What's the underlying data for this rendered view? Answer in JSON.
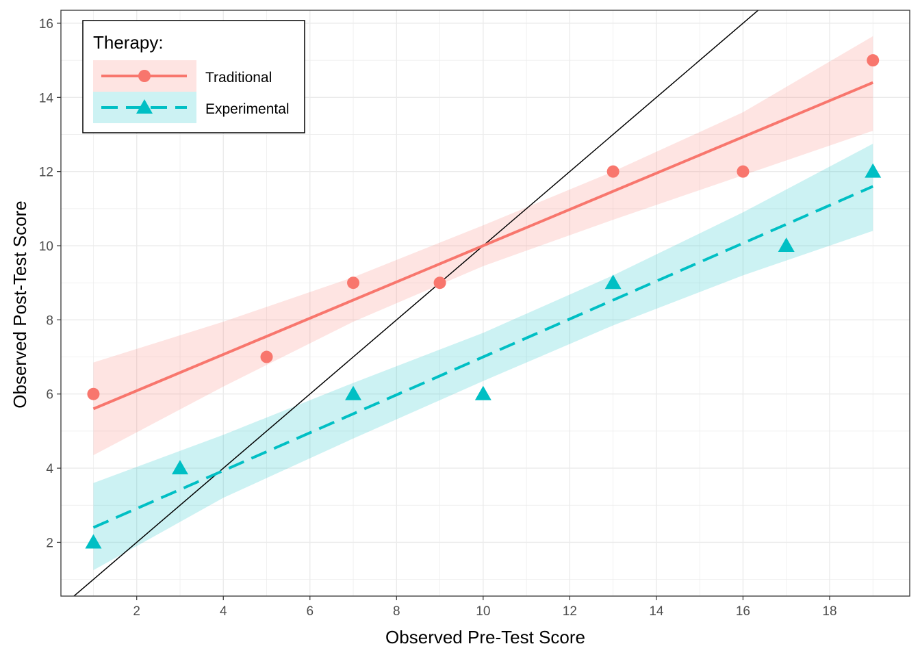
{
  "chart_data": {
    "type": "scatter",
    "xlabel": "Observed Pre-Test Score",
    "ylabel": "Observed Post-Test Score",
    "xlim": [
      0.25,
      19.85
    ],
    "ylim": [
      0.55,
      16.35
    ],
    "x_ticks": [
      2,
      4,
      6,
      8,
      10,
      12,
      14,
      16,
      18
    ],
    "y_ticks": [
      2,
      4,
      6,
      8,
      10,
      12,
      14,
      16
    ],
    "x_tick_labels": [
      "2",
      "4",
      "6",
      "8",
      "10",
      "12",
      "14",
      "16",
      "18"
    ],
    "y_tick_labels": [
      "2",
      "4",
      "6",
      "8",
      "10",
      "12",
      "14",
      "16"
    ],
    "grid": true,
    "reference_line": {
      "slope": 1,
      "intercept": 0,
      "color": "#000000"
    },
    "legend": {
      "title": "Therapy:",
      "position": "top-left"
    },
    "series": [
      {
        "name": "Traditional",
        "color": "#F8766D",
        "marker": "circle",
        "line_style": "solid",
        "points": [
          [
            1,
            6
          ],
          [
            5,
            7
          ],
          [
            7,
            9
          ],
          [
            9,
            9
          ],
          [
            13,
            12
          ],
          [
            16,
            12
          ],
          [
            19,
            15
          ]
        ],
        "fit": {
          "x0": 1,
          "x1": 19,
          "y0": 5.6,
          "y1": 14.4
        },
        "band": {
          "x": [
            1,
            4,
            7,
            10,
            13,
            16,
            19
          ],
          "lower": [
            4.35,
            6.2,
            7.95,
            9.45,
            10.7,
            11.9,
            13.1
          ],
          "upper": [
            6.85,
            7.95,
            9.15,
            10.55,
            12.0,
            13.6,
            15.65
          ]
        }
      },
      {
        "name": "Experimental",
        "color": "#00BFC4",
        "marker": "triangle",
        "line_style": "dashed",
        "points": [
          [
            1,
            2
          ],
          [
            3,
            4
          ],
          [
            7,
            6
          ],
          [
            10,
            6
          ],
          [
            13,
            9
          ],
          [
            17,
            10
          ],
          [
            19,
            12
          ]
        ],
        "fit": {
          "x0": 1,
          "x1": 19,
          "y0": 2.4,
          "y1": 11.6
        },
        "band": {
          "x": [
            1,
            4,
            7,
            10,
            13,
            16,
            19
          ],
          "lower": [
            1.25,
            3.2,
            4.8,
            6.35,
            7.85,
            9.2,
            10.4
          ],
          "upper": [
            3.6,
            4.9,
            6.3,
            7.65,
            9.2,
            10.9,
            12.75
          ]
        }
      }
    ]
  }
}
